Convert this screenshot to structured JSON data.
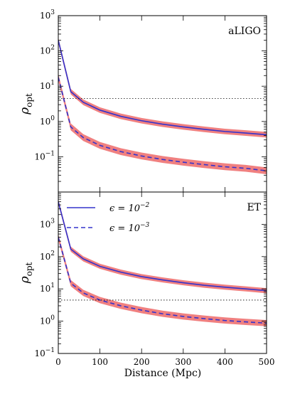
{
  "chart_data": [
    {
      "type": "line",
      "panel_label": "aLIGO",
      "ylabel_main": "ρ",
      "ylabel_sub": "opt",
      "xlabel": "",
      "xlim": [
        0,
        500
      ],
      "ylim": [
        0.01,
        1000
      ],
      "yscale": "log",
      "yticks": [
        0.1,
        1,
        10,
        100,
        1000
      ],
      "yticklabels": [
        {
          "base": "10",
          "exp": "−1"
        },
        {
          "base": "10",
          "exp": "0"
        },
        {
          "base": "10",
          "exp": "1"
        },
        {
          "base": "10",
          "exp": "2"
        },
        {
          "base": "10",
          "exp": "3"
        }
      ],
      "threshold": 4.5,
      "band_color": "#f08080",
      "line_color": "#3333cc",
      "series": [
        {
          "style": "solid",
          "x": [
            0,
            30,
            60,
            100,
            150,
            200,
            250,
            300,
            350,
            400,
            450,
            500
          ],
          "y": [
            200,
            7,
            3.5,
            2.1,
            1.4,
            1.05,
            0.84,
            0.7,
            0.6,
            0.52,
            0.47,
            0.42
          ],
          "band_factor": 1.2
        },
        {
          "style": "dashed",
          "x": [
            0,
            30,
            60,
            100,
            150,
            200,
            250,
            300,
            350,
            400,
            450,
            500
          ],
          "y": [
            18,
            0.7,
            0.35,
            0.21,
            0.14,
            0.105,
            0.084,
            0.07,
            0.06,
            0.052,
            0.047,
            0.04
          ],
          "band_factor": 1.25
        }
      ]
    },
    {
      "type": "line",
      "panel_label": "ET",
      "ylabel_main": "ρ",
      "ylabel_sub": "opt",
      "xlabel": "Distance (Mpc)",
      "xlim": [
        0,
        500
      ],
      "xticks": [
        0,
        100,
        200,
        300,
        400,
        500
      ],
      "ylim": [
        0.1,
        10000
      ],
      "yscale": "log",
      "yticks": [
        0.1,
        1,
        10,
        100,
        1000
      ],
      "yticklabels": [
        {
          "base": "10",
          "exp": "−1"
        },
        {
          "base": "10",
          "exp": "0"
        },
        {
          "base": "10",
          "exp": "1"
        },
        {
          "base": "10",
          "exp": "2"
        },
        {
          "base": "10",
          "exp": "3"
        }
      ],
      "threshold": 4.5,
      "band_color": "#f08080",
      "line_color": "#3333cc",
      "legend": [
        {
          "style": "solid",
          "label": "ϵ = 10",
          "exp": "−2"
        },
        {
          "style": "dashed",
          "label": "ϵ = 10",
          "exp": "−3"
        }
      ],
      "series": [
        {
          "style": "solid",
          "x": [
            0,
            30,
            60,
            100,
            150,
            200,
            250,
            300,
            350,
            400,
            450,
            500
          ],
          "y": [
            5000,
            170,
            85,
            50,
            33,
            24,
            19,
            15.5,
            13,
            11.3,
            10,
            8.8
          ],
          "band_factor": 1.2
        },
        {
          "style": "dashed",
          "x": [
            0,
            30,
            60,
            100,
            150,
            200,
            250,
            300,
            350,
            400,
            450,
            500
          ],
          "y": [
            400,
            15,
            7.5,
            4.5,
            3.0,
            2.2,
            1.7,
            1.4,
            1.2,
            1.05,
            0.95,
            0.87
          ],
          "band_factor": 1.25
        }
      ]
    }
  ]
}
